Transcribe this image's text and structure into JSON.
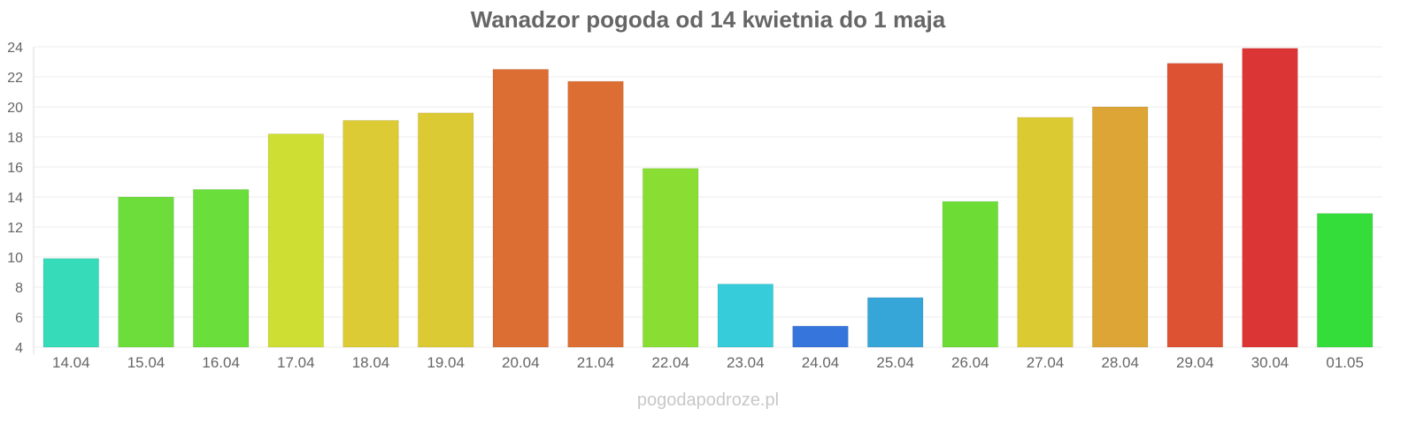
{
  "chart_data": {
    "type": "bar",
    "title": "Wanadzor pogoda od 14 kwietnia do 1 maja",
    "xlabel": "",
    "ylabel": "",
    "ylim": [
      4,
      24
    ],
    "yticks": [
      4,
      6,
      8,
      10,
      12,
      14,
      16,
      18,
      20,
      22,
      24
    ],
    "grid": true,
    "categories": [
      "14.04",
      "15.04",
      "16.04",
      "17.04",
      "18.04",
      "19.04",
      "20.04",
      "21.04",
      "22.04",
      "23.04",
      "24.04",
      "25.04",
      "26.04",
      "27.04",
      "28.04",
      "29.04",
      "30.04",
      "01.05"
    ],
    "values": [
      9.9,
      14.0,
      14.5,
      18.2,
      19.1,
      19.6,
      22.5,
      21.7,
      15.9,
      8.2,
      5.4,
      7.3,
      13.7,
      19.3,
      20.0,
      22.9,
      23.9,
      12.9
    ],
    "colors": [
      "#36dbb9",
      "#6cdd3a",
      "#6ade3a",
      "#cede33",
      "#dccb35",
      "#dcca35",
      "#dc6e33",
      "#dc6e33",
      "#8ade33",
      "#36ccd9",
      "#3575dc",
      "#36a6d9",
      "#6ddd35",
      "#dcca33",
      "#dca535",
      "#dc5233",
      "#dc3535",
      "#35dd3a"
    ]
  },
  "watermark": "pogodapodroze.pl"
}
